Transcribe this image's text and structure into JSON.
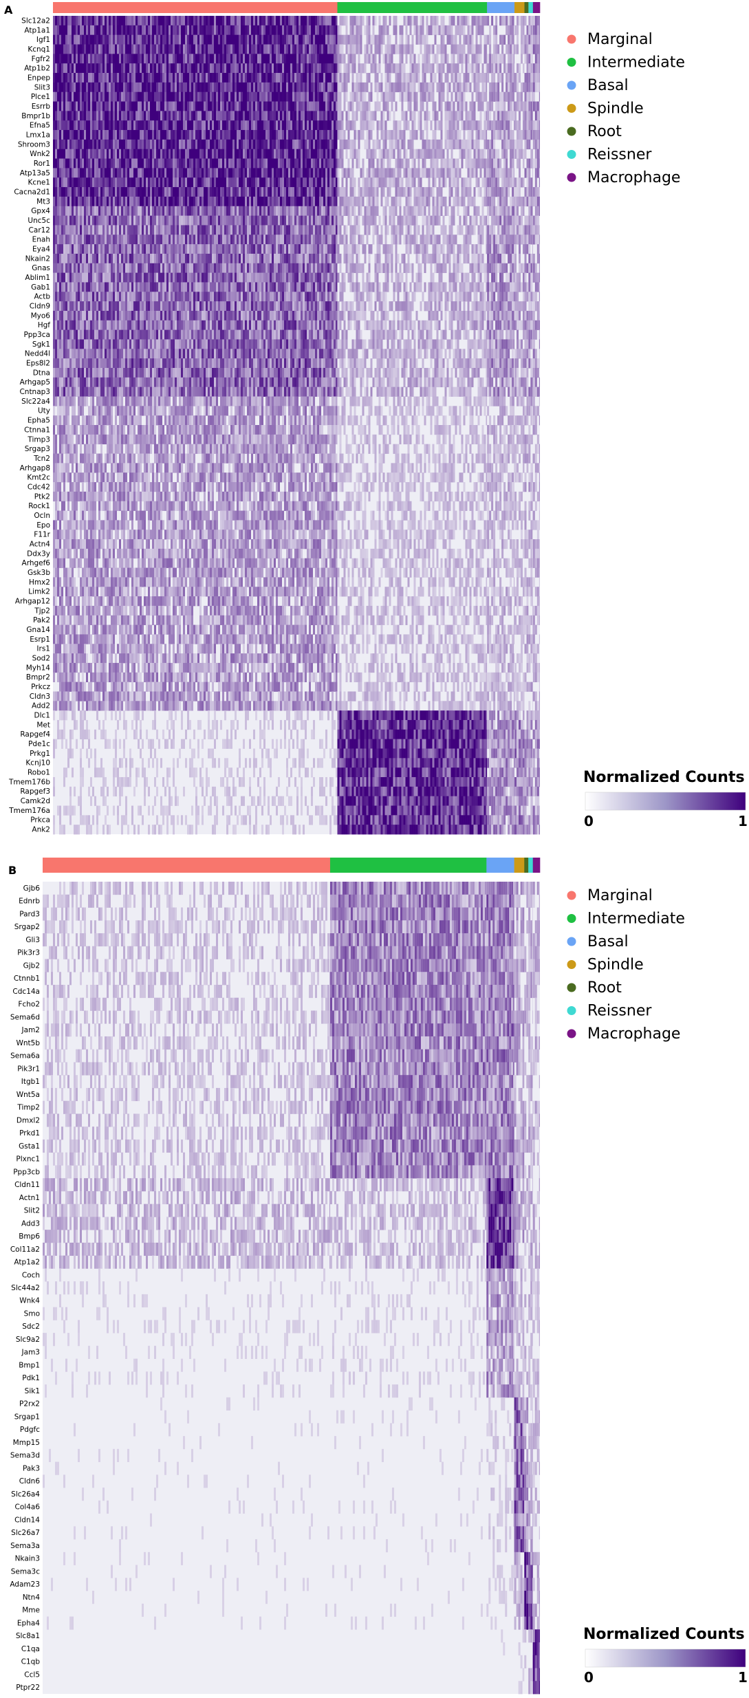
{
  "colors": {
    "Marginal": "#f8766d",
    "Intermediate": "#1fc042",
    "Basal": "#6aa4f5",
    "Spindle": "#cc9a18",
    "Root": "#4a6b20",
    "Reissner": "#3fd9d2",
    "Macrophage": "#7a1486",
    "low": "#eeeef5",
    "high": "#3f007d"
  },
  "chart_data": [
    {
      "type": "heatmap",
      "panel_label": "A",
      "cell_types": [
        "Marginal",
        "Intermediate",
        "Basal",
        "Spindle",
        "Root",
        "Reissner",
        "Macrophage"
      ],
      "cell_type_fraction": [
        0.57,
        0.3,
        0.055,
        0.02,
        0.008,
        0.009,
        0.014
      ],
      "genes": [
        "Slc12a2",
        "Atp1a1",
        "Igf1",
        "Kcnq1",
        "Fgfr2",
        "Atp1b2",
        "Enpep",
        "Slit3",
        "Plce1",
        "Esrrb",
        "Bmpr1b",
        "Efna5",
        "Lmx1a",
        "Shroom3",
        "Wnk2",
        "Ror1",
        "Atp13a5",
        "Kcne1",
        "Cacna2d1",
        "Mt3",
        "Gpx4",
        "Unc5c",
        "Car12",
        "Enah",
        "Eya4",
        "Nkain2",
        "Gnas",
        "Ablim1",
        "Gab1",
        "Actb",
        "Cldn9",
        "Myo6",
        "Hgf",
        "Ppp3ca",
        "Sgk1",
        "Nedd4l",
        "Eps8l2",
        "Dtna",
        "Arhgap5",
        "Cntnap3",
        "Slc22a4",
        "Uty",
        "Epha5",
        "Ctnna1",
        "Timp3",
        "Srgap3",
        "Tcn2",
        "Arhgap8",
        "Kmt2c",
        "Cdc42",
        "Ptk2",
        "Rock1",
        "Ocln",
        "Epo",
        "F11r",
        "Actn4",
        "Ddx3y",
        "Arhgef6",
        "Gsk3b",
        "Hmx2",
        "Limk2",
        "Arhgap12",
        "Tjp2",
        "Pak2",
        "Gna14",
        "Esrp1",
        "Irs1",
        "Sod2",
        "Myh14",
        "Bmpr2",
        "Prkcz",
        "Cldn3",
        "Add2",
        "Dlc1",
        "Met",
        "Rapgef4",
        "Pde1c",
        "Prkg1",
        "Kcnj10",
        "Robo1",
        "Tmem176b",
        "Rapgef3",
        "Camk2d",
        "Tmem176a",
        "Prkca",
        "Ank2"
      ],
      "colorbar": {
        "title": "Normalized Counts",
        "min": 0,
        "max": 1,
        "min_label": "0",
        "max_label": "1"
      },
      "legend_position": "top-right"
    },
    {
      "type": "heatmap",
      "panel_label": "B",
      "cell_types": [
        "Marginal",
        "Intermediate",
        "Basal",
        "Spindle",
        "Root",
        "Reissner",
        "Macrophage"
      ],
      "cell_type_fraction": [
        0.57,
        0.31,
        0.055,
        0.02,
        0.008,
        0.009,
        0.014
      ],
      "genes": [
        "Gjb6",
        "Ednrb",
        "Pard3",
        "Srgap2",
        "Gli3",
        "Pik3r3",
        "Gjb2",
        "Ctnnb1",
        "Cdc14a",
        "Fcho2",
        "Sema6d",
        "Jam2",
        "Wnt5b",
        "Sema6a",
        "Pik3r1",
        "Itgb1",
        "Wnt5a",
        "Timp2",
        "Dmxl2",
        "Prkd1",
        "Gsta1",
        "Plxnc1",
        "Ppp3cb",
        "Cldn11",
        "Actn1",
        "Slit2",
        "Add3",
        "Bmp6",
        "Col11a2",
        "Atp1a2",
        "Coch",
        "Slc44a2",
        "Wnk4",
        "Smo",
        "Sdc2",
        "Slc9a2",
        "Jam3",
        "Bmp1",
        "Pdk1",
        "Sik1",
        "P2rx2",
        "Srgap1",
        "Pdgfc",
        "Mmp15",
        "Sema3d",
        "Pak3",
        "Cldn6",
        "Slc26a4",
        "Col4a6",
        "Cldn14",
        "Slc26a7",
        "Sema3a",
        "Nkain3",
        "Sema3c",
        "Adam23",
        "Ntn4",
        "Mme",
        "Epha4",
        "Slc8a1",
        "C1qa",
        "C1qb",
        "Ccl5",
        "Ptpr22"
      ],
      "colorbar": {
        "title": "Normalized Counts",
        "min": 0,
        "max": 1,
        "min_label": "0",
        "max_label": "1"
      },
      "legend_position": "top-right"
    }
  ]
}
